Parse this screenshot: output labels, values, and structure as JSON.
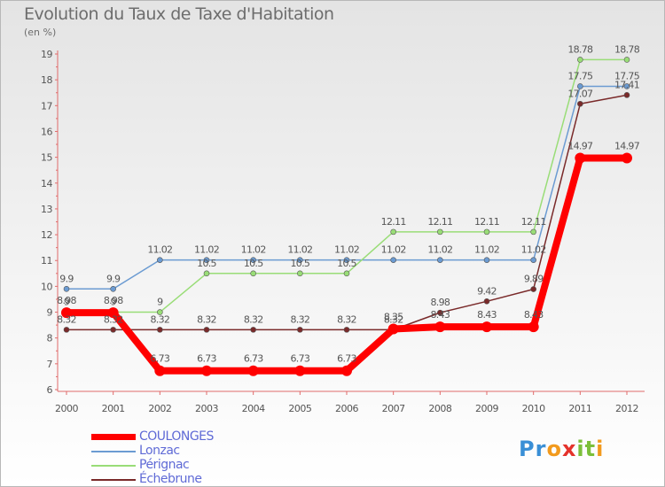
{
  "header": {
    "title": "Evolution du Taux de Taxe d'Habitation",
    "unit": "(en %)"
  },
  "chart_data": {
    "type": "line",
    "title": "Evolution du Taux de Taxe d'Habitation",
    "ylabel": "(en %)",
    "xlabel": "",
    "x": [
      "2000",
      "2001",
      "2002",
      "2003",
      "2004",
      "2005",
      "2006",
      "2007",
      "2008",
      "2009",
      "2010",
      "2011",
      "2012"
    ],
    "ylim": [
      6,
      19
    ],
    "yticks": [
      "6",
      "7",
      "8",
      "9",
      "10",
      "11",
      "12",
      "13",
      "14",
      "15",
      "16",
      "17",
      "18",
      "19"
    ],
    "grid": false,
    "legend": "bottom-left",
    "series": [
      {
        "name": "COULONGES",
        "color": "#ff0000",
        "values": [
          8.98,
          8.98,
          6.73,
          6.73,
          6.73,
          6.73,
          6.73,
          8.35,
          8.43,
          8.43,
          8.43,
          14.97,
          14.97
        ],
        "labels": [
          "8.98",
          "8.98",
          "6.73",
          "6.73",
          "6.73",
          "6.73",
          "6.73",
          "8.35",
          "8.43",
          "8.43",
          "8.43",
          "14.97",
          "14.97"
        ]
      },
      {
        "name": "Lonzac",
        "color": "#6b9bd2",
        "values": [
          9.9,
          9.9,
          11.02,
          11.02,
          11.02,
          11.02,
          11.02,
          11.02,
          11.02,
          11.02,
          11.02,
          17.75,
          17.75
        ],
        "labels": [
          "9.9",
          "9.9",
          "11.02",
          "11.02",
          "11.02",
          "11.02",
          "11.02",
          "11.02",
          "11.02",
          "11.02",
          "11.02",
          "17.75",
          "17.75"
        ]
      },
      {
        "name": "Pérignac",
        "color": "#99dd77",
        "values": [
          9,
          9,
          9,
          10.5,
          10.5,
          10.5,
          10.5,
          12.11,
          12.11,
          12.11,
          12.11,
          18.78,
          18.78
        ],
        "labels": [
          "9",
          "9",
          "9",
          "10.5",
          "10.5",
          "10.5",
          "10.5",
          "12.11",
          "12.11",
          "12.11",
          "12.11",
          "18.78",
          "18.78"
        ]
      },
      {
        "name": "Échebrune",
        "color": "#7a2a2a",
        "values": [
          8.32,
          8.32,
          8.32,
          8.32,
          8.32,
          8.32,
          8.32,
          8.32,
          8.98,
          9.42,
          9.89,
          17.07,
          17.41
        ],
        "labels": [
          "8.32",
          "8.32",
          "8.32",
          "8.32",
          "8.32",
          "8.32",
          "8.32",
          "8.32",
          "8.98",
          "9.42",
          "9.89",
          "17.07",
          "17.41"
        ]
      }
    ]
  },
  "logo": {
    "letters": [
      "P",
      "r",
      "o",
      "x",
      "i",
      "t",
      "i"
    ],
    "colors": [
      "#3a8fd6",
      "#3a8fd6",
      "#f29a1d",
      "#e4322b",
      "#7bbf3a",
      "#7bbf3a",
      "#f29a1d"
    ]
  }
}
